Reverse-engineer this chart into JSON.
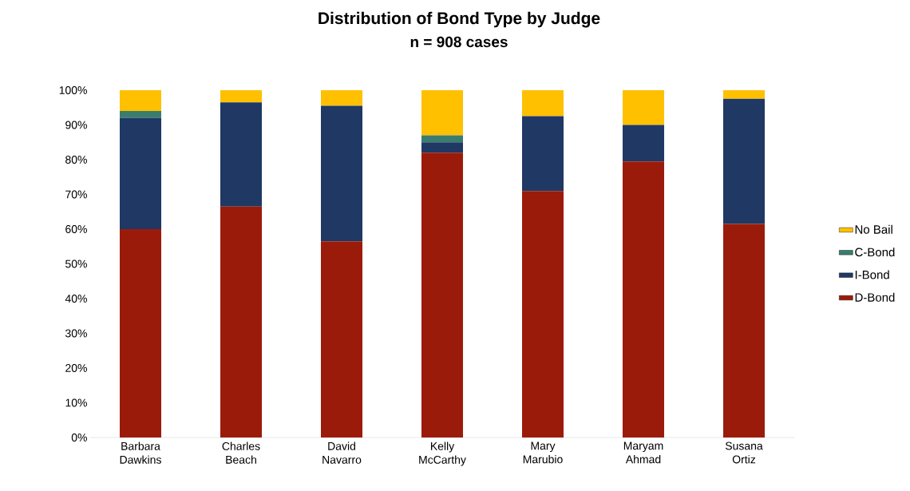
{
  "chart_data": {
    "type": "bar",
    "title": "Distribution of Bond Type by Judge",
    "subtitle": "n = 908 cases",
    "categories": [
      "Barbara Dawkins",
      "Charles Beach",
      "David Navarro",
      "Kelly McCarthy",
      "Mary Marubio",
      "Maryam Ahmad",
      "Susana Ortiz"
    ],
    "stacked": true,
    "series": [
      {
        "name": "D-Bond",
        "color": "#9b1b0a",
        "values": [
          60,
          66.5,
          56.5,
          82,
          71,
          79.5,
          61.5
        ]
      },
      {
        "name": "I-Bond",
        "color": "#1f3864",
        "values": [
          32,
          30,
          39,
          3,
          21.5,
          10.5,
          36
        ]
      },
      {
        "name": "C-Bond",
        "color": "#3a7d6e",
        "values": [
          2,
          0,
          0,
          2,
          0,
          0,
          0
        ]
      },
      {
        "name": "No Bail",
        "color": "#ffc000",
        "values": [
          6,
          3.5,
          4.5,
          13,
          7.5,
          10,
          2.5
        ]
      }
    ],
    "ylim": [
      0,
      100
    ],
    "yticks": [
      {
        "value": 0,
        "label": "0%"
      },
      {
        "value": 10,
        "label": "10%"
      },
      {
        "value": 20,
        "label": "20%"
      },
      {
        "value": 30,
        "label": "30%"
      },
      {
        "value": 40,
        "label": "40%"
      },
      {
        "value": 50,
        "label": "50%"
      },
      {
        "value": 60,
        "label": "60%"
      },
      {
        "value": 70,
        "label": "70%"
      },
      {
        "value": 80,
        "label": "80%"
      },
      {
        "value": 90,
        "label": "90%"
      },
      {
        "value": 100,
        "label": "100%"
      }
    ],
    "legend": "right"
  }
}
